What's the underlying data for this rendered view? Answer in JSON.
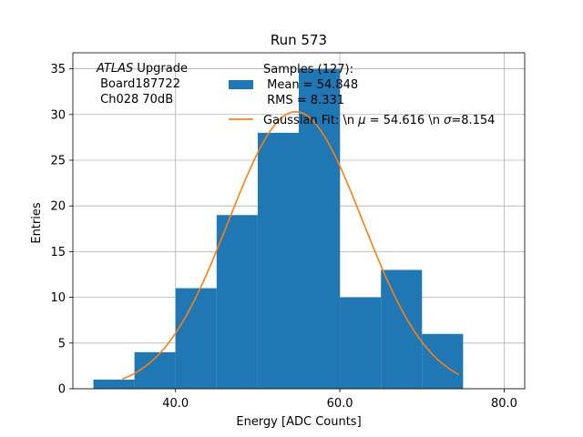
{
  "chart_data": {
    "type": "bar",
    "title": "Run 573",
    "xlabel": "Energy [ADC Counts]",
    "ylabel": "Entries",
    "xlim": [
      27.5,
      82.5
    ],
    "ylim": [
      0,
      36.75
    ],
    "xticks": [
      40,
      60,
      80
    ],
    "xtick_labels": [
      "40.0",
      "60.0",
      "80.0"
    ],
    "yticks": [
      0,
      5,
      10,
      15,
      20,
      25,
      30,
      35
    ],
    "ytick_labels": [
      "0",
      "5",
      "10",
      "15",
      "20",
      "25",
      "30",
      "35"
    ],
    "grid": true,
    "bins": [
      {
        "x0": 30,
        "x1": 35,
        "count": 1
      },
      {
        "x0": 35,
        "x1": 40,
        "count": 4
      },
      {
        "x0": 40,
        "x1": 45,
        "count": 11
      },
      {
        "x0": 45,
        "x1": 50,
        "count": 19
      },
      {
        "x0": 50,
        "x1": 55,
        "count": 28
      },
      {
        "x0": 55,
        "x1": 60,
        "count": 35
      },
      {
        "x0": 60,
        "x1": 65,
        "count": 10
      },
      {
        "x0": 65,
        "x1": 70,
        "count": 13
      },
      {
        "x0": 70,
        "x1": 75,
        "count": 6
      }
    ],
    "bar_color": "#1f77b4",
    "fit": {
      "type": "gaussian",
      "mu": 54.616,
      "sigma": 8.154,
      "amplitude": 30.3,
      "x_range": [
        33.5,
        74.5
      ],
      "color": "#ff7f0e"
    },
    "annotation": {
      "line1_italic": "ATLAS",
      "line1_rest": " Upgrade",
      "line2": " Board187722",
      "line3": " Ch028 70dB"
    },
    "legend": {
      "placement": "top-center",
      "hist_label_lines": [
        "Samples (127):",
        " Mean = 54.848",
        " RMS = 8.331"
      ],
      "fit_label_prefix": "Gaussian Fit: \\n ",
      "fit_mu_symbol": "μ",
      "fit_mu_text": " = 54.616 \\n ",
      "fit_sigma_symbol": "σ",
      "fit_sigma_text": "=8.154"
    }
  }
}
